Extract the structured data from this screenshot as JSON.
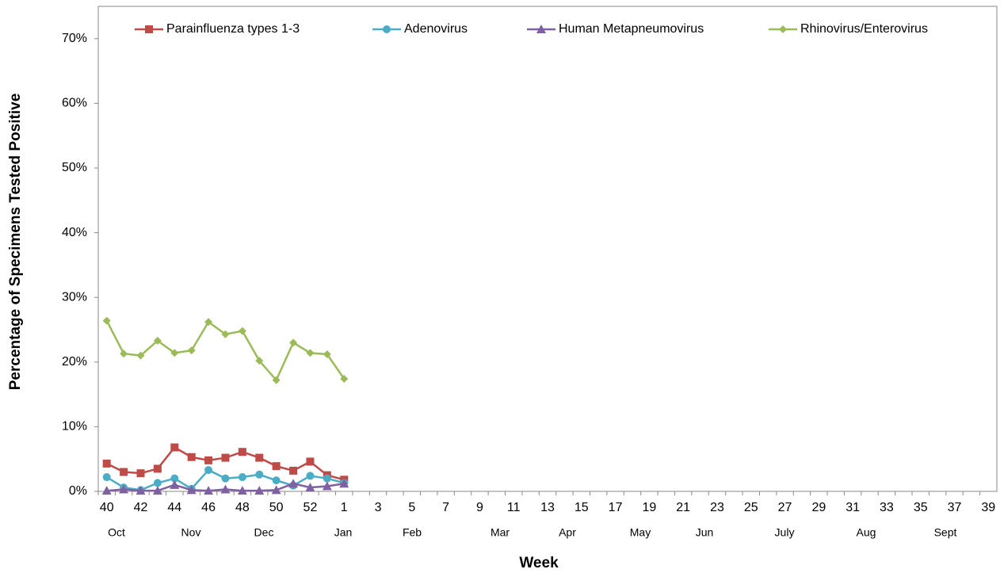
{
  "chart_data": {
    "type": "line",
    "y_label": "Percentage of Specimens Tested Positive",
    "x_label": "Week",
    "categories": [
      "40",
      null,
      "42",
      null,
      "44",
      null,
      "46",
      null,
      "48",
      null,
      "50",
      null,
      "52",
      null,
      "1",
      null,
      "3",
      null,
      "5",
      null,
      "7",
      null,
      "9",
      null,
      "11",
      null,
      "13",
      null,
      "15",
      null,
      "17",
      null,
      "19",
      null,
      "21",
      null,
      "23",
      null,
      "25",
      null,
      "27",
      null,
      "29",
      null,
      "31",
      null,
      "33",
      null,
      "35",
      null,
      "37",
      null,
      "39"
    ],
    "months": [
      "Oct",
      "Nov",
      "Dec",
      "Jan",
      "Feb",
      "Mar",
      "Apr",
      "May",
      "Jun",
      "July",
      "Aug",
      "Sept"
    ],
    "ylim": [
      0,
      75
    ],
    "yticks": [
      {
        "value": 0,
        "label": "0%"
      },
      {
        "value": 10,
        "label": "10%"
      },
      {
        "value": 20,
        "label": "20%"
      },
      {
        "value": 30,
        "label": "30%"
      },
      {
        "value": 40,
        "label": "40%"
      },
      {
        "value": 50,
        "label": "50%"
      },
      {
        "value": 60,
        "label": "60%"
      },
      {
        "value": 70,
        "label": "70%"
      }
    ],
    "grid": false,
    "legend": "top",
    "series": [
      {
        "name": "Parainfluenza types 1-3",
        "color": "#be4b48",
        "marker": "square",
        "values": [
          4.3,
          3,
          2.8,
          3.5,
          6.8,
          5.3,
          4.8,
          5.2,
          6.1,
          5.2,
          3.9,
          3.2,
          4.6,
          2.5,
          1.8,
          null,
          null,
          null,
          null,
          null,
          null,
          null,
          null,
          null,
          null,
          null,
          null,
          null,
          null,
          null,
          null,
          null,
          null,
          null,
          null,
          null,
          null,
          null,
          null,
          null,
          null,
          null,
          null,
          null,
          null,
          null,
          null,
          null,
          null,
          null,
          null,
          null,
          null
        ]
      },
      {
        "name": "Adenovirus",
        "color": "#4bacc6",
        "marker": "circle",
        "values": [
          2.2,
          0.6,
          0.2,
          1.3,
          2,
          0.4,
          3.3,
          2,
          2.2,
          2.6,
          1.7,
          0.9,
          2.4,
          2,
          1.3,
          null,
          null,
          null,
          null,
          null,
          null,
          null,
          null,
          null,
          null,
          null,
          null,
          null,
          null,
          null,
          null,
          null,
          null,
          null,
          null,
          null,
          null,
          null,
          null,
          null,
          null,
          null,
          null,
          null,
          null,
          null,
          null,
          null,
          null,
          null,
          null,
          null,
          null
        ]
      },
      {
        "name": "Human Metapneumovirus",
        "color": "#7f60a0",
        "marker": "triangle",
        "values": [
          0.1,
          0.3,
          0.1,
          0.1,
          1,
          0.2,
          0.1,
          0.3,
          0.1,
          0.1,
          0.2,
          1.2,
          0.6,
          0.8,
          1.2,
          null,
          null,
          null,
          null,
          null,
          null,
          null,
          null,
          null,
          null,
          null,
          null,
          null,
          null,
          null,
          null,
          null,
          null,
          null,
          null,
          null,
          null,
          null,
          null,
          null,
          null,
          null,
          null,
          null,
          null,
          null,
          null,
          null,
          null,
          null,
          null,
          null,
          null
        ]
      },
      {
        "name": "Rhinovirus/Enterovirus",
        "color": "#9bbb59",
        "marker": "diamond",
        "values": [
          26.4,
          21.3,
          21,
          23.3,
          21.4,
          21.8,
          26.2,
          24.3,
          24.8,
          20.2,
          17.2,
          23,
          21.4,
          21.2,
          17.4,
          null,
          null,
          null,
          null,
          null,
          null,
          null,
          null,
          null,
          null,
          null,
          null,
          null,
          null,
          null,
          null,
          null,
          null,
          null,
          null,
          null,
          null,
          null,
          null,
          null,
          null,
          null,
          null,
          null,
          null,
          null,
          null,
          null,
          null,
          null,
          null,
          null,
          null
        ]
      }
    ]
  }
}
